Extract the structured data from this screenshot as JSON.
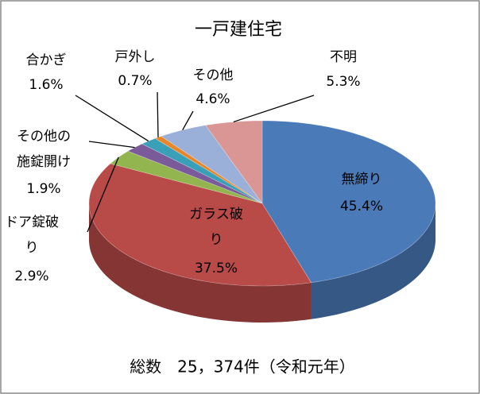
{
  "chart_data": {
    "type": "pie3d",
    "title": "一戸建住宅",
    "subtitle": "総数　25，374件（令和元年）",
    "categories": [
      "無締り",
      "ガラス破り",
      "ドア錠破り",
      "その他の施錠開け",
      "合かぎ",
      "戸外し",
      "その他",
      "不明"
    ],
    "values": [
      45.4,
      37.5,
      2.9,
      1.9,
      1.6,
      0.7,
      4.6,
      5.3
    ],
    "value_labels": [
      "45.4%",
      "37.5%",
      "2.9%",
      "1.9%",
      "1.6%",
      "0.7%",
      "4.6%",
      "5.3%"
    ],
    "colors": [
      "#4a7ab8",
      "#b84a48",
      "#92b550",
      "#7a5a9a",
      "#3aa0b8",
      "#e8872a",
      "#9ab0d8",
      "#d99694"
    ]
  }
}
